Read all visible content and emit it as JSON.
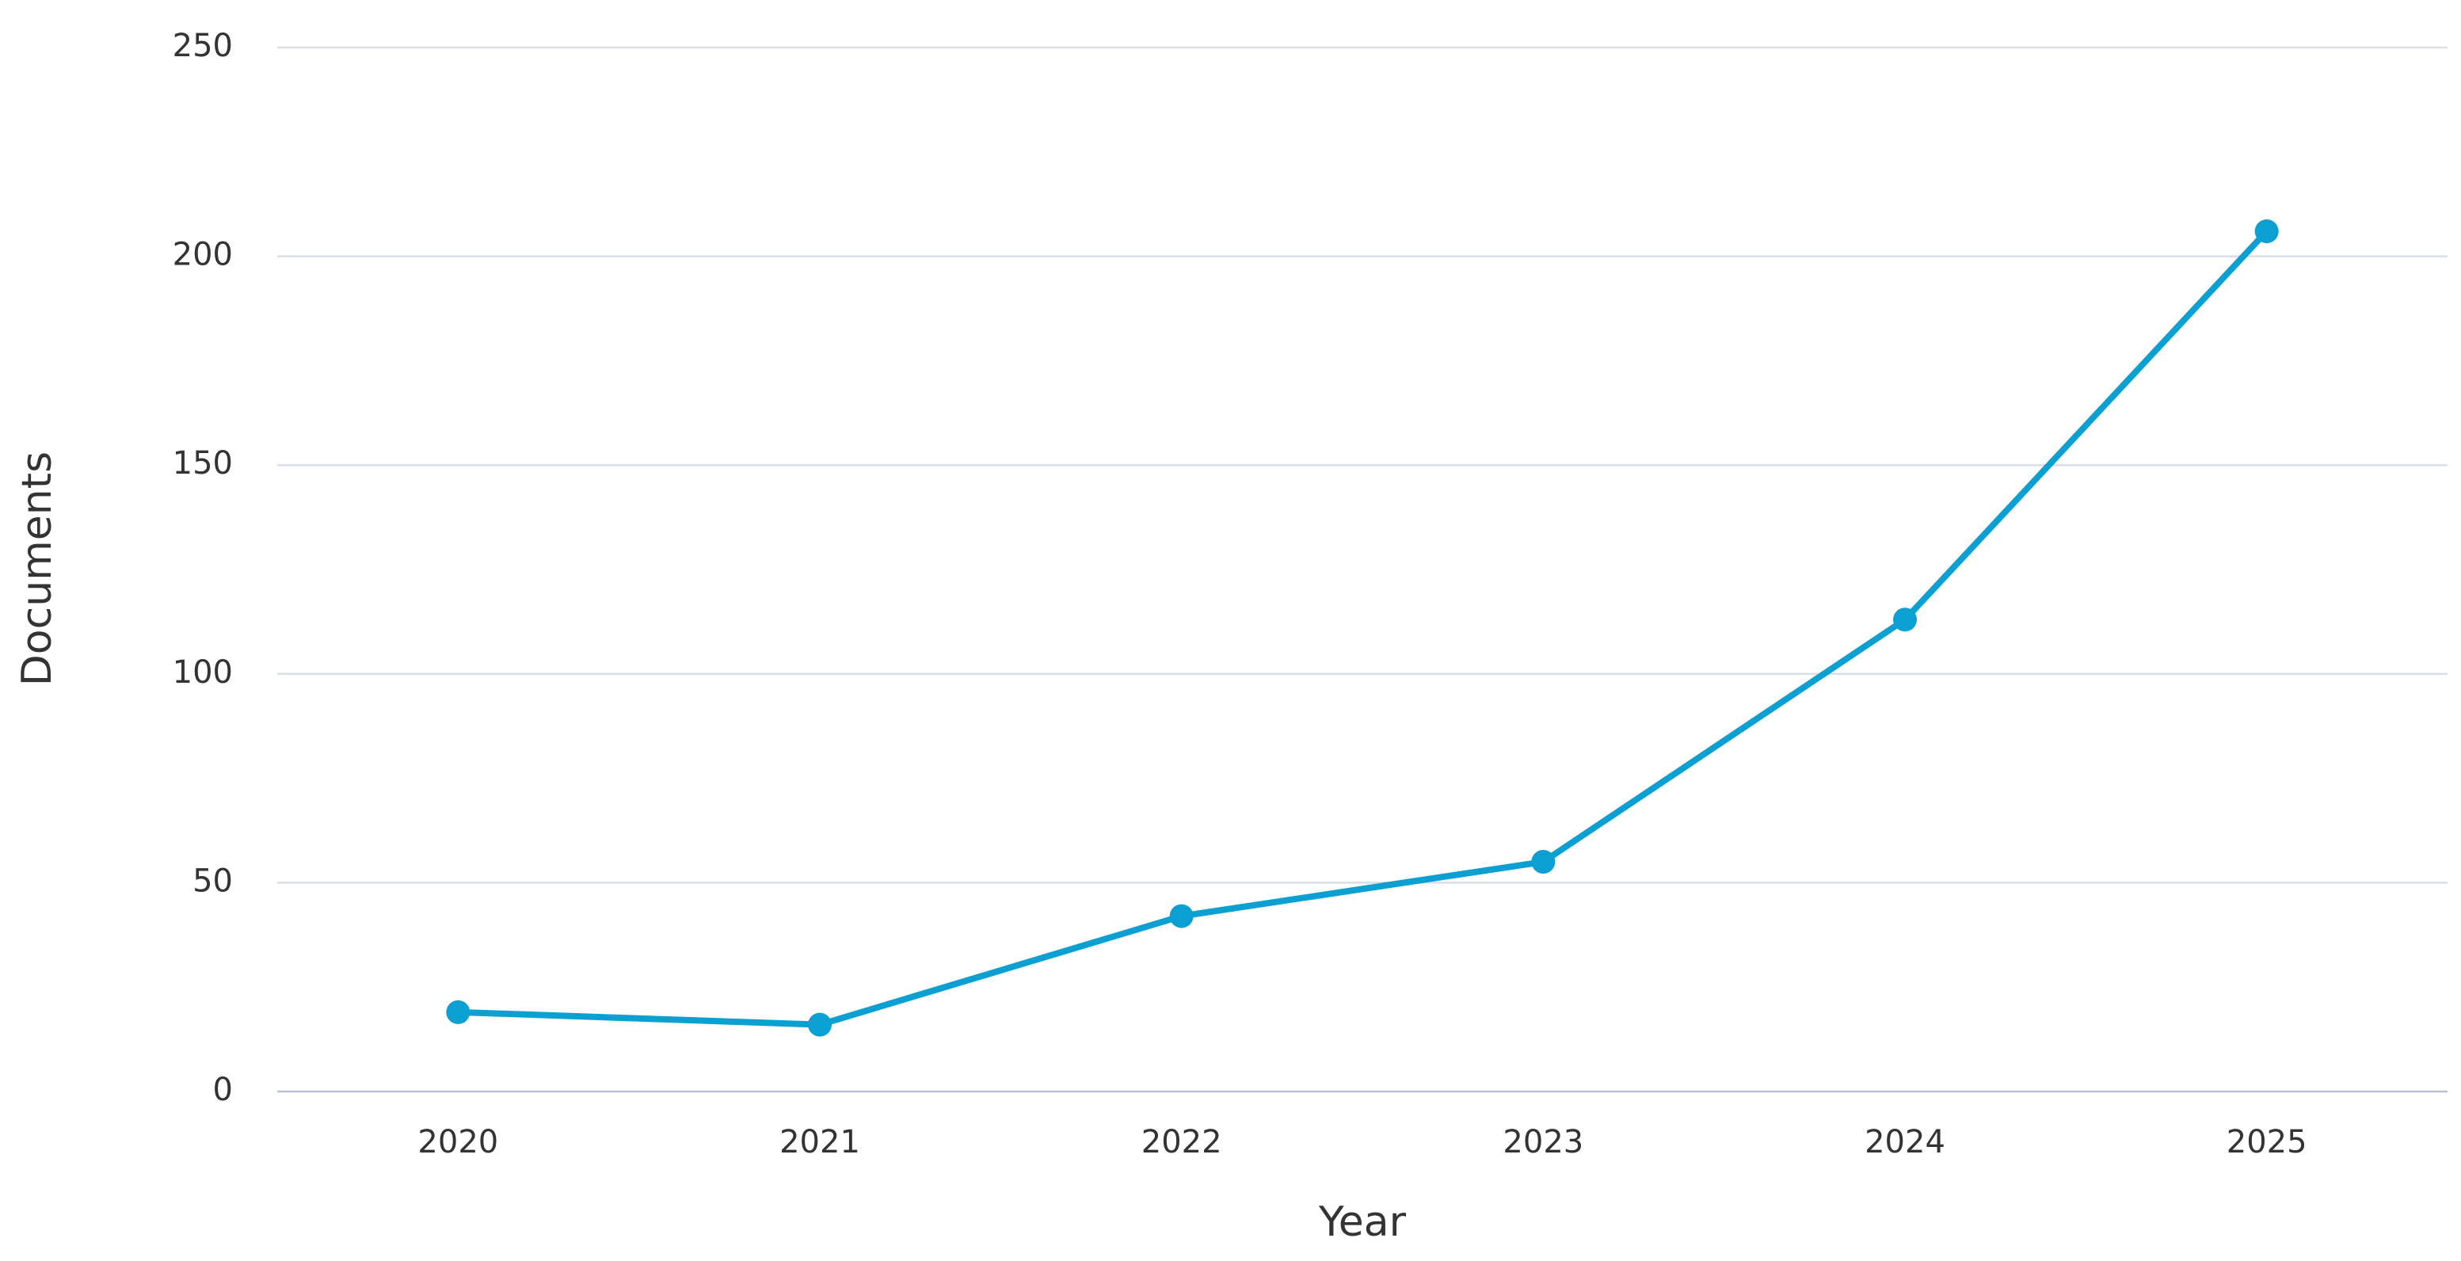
{
  "chart_data": {
    "type": "line",
    "x_label": "Year",
    "y_label": "Documents",
    "categories": [
      "2020",
      "2021",
      "2022",
      "2023",
      "2024",
      "2025"
    ],
    "series": [
      {
        "name": "Documents",
        "color": "#0ba0d1",
        "values": [
          19,
          16,
          42,
          55,
          113,
          206
        ]
      }
    ],
    "ylim": [
      0,
      250
    ],
    "yticks": [
      0,
      50,
      100,
      150,
      200,
      250
    ],
    "grid": true
  }
}
